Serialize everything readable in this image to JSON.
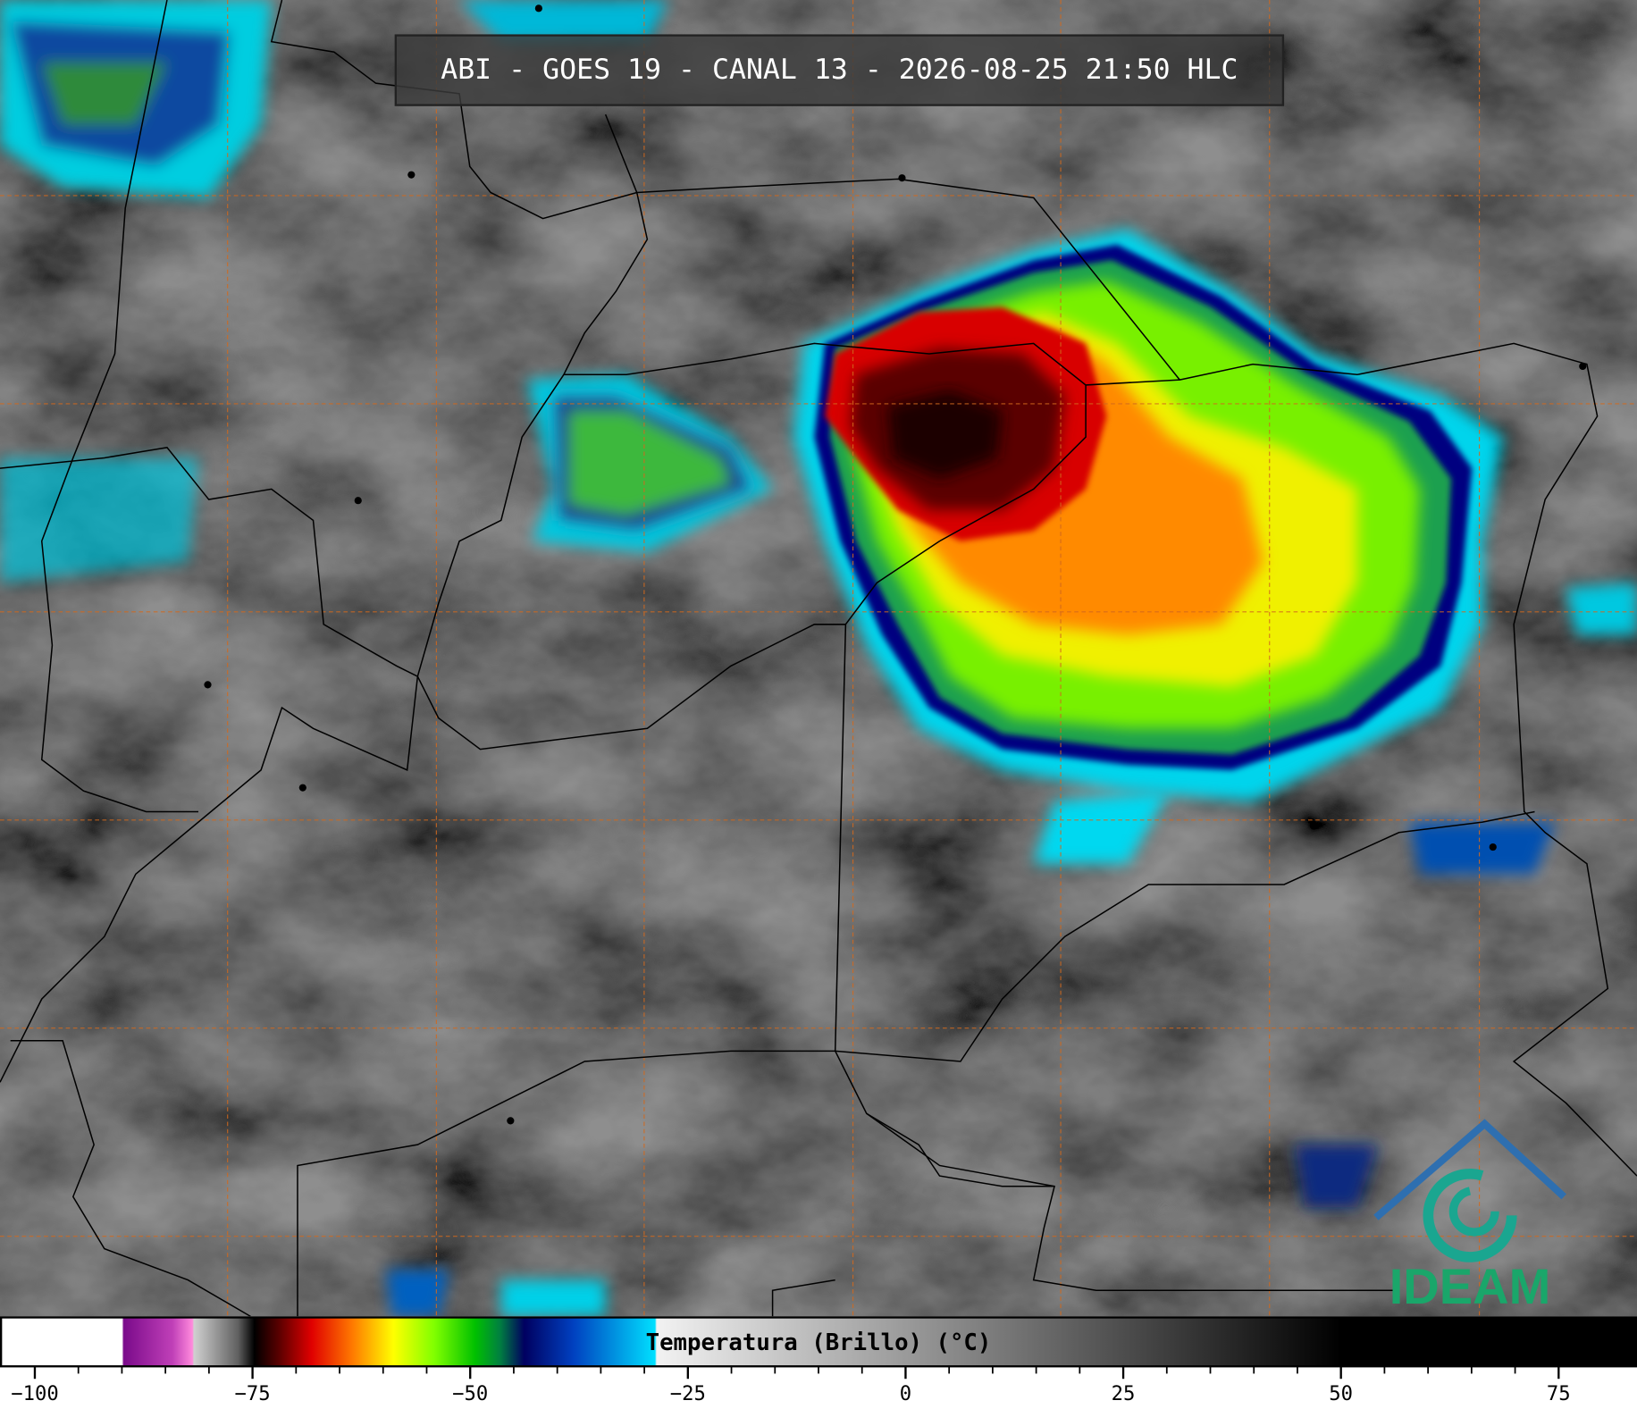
{
  "title": "ABI - GOES 19 - CANAL 13 - 2026-08-25 21:50 HLC",
  "colorbar": {
    "label": "Temperatura (Brillo) (°C)",
    "lim": [
      -104,
      84
    ],
    "ticks": [
      {
        "value": -100,
        "label": "−100"
      },
      {
        "value": -75,
        "label": "−75"
      },
      {
        "value": -50,
        "label": "−50"
      },
      {
        "value": -25,
        "label": "−25"
      },
      0,
      25,
      50,
      75
    ]
  },
  "logo": "IDEAM"
}
